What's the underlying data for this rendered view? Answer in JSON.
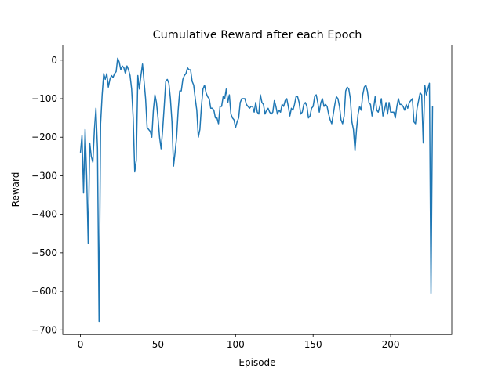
{
  "chart_data": {
    "type": "line",
    "title": "Cumulative Reward after each Epoch",
    "xlabel": "Episode",
    "ylabel": "Reward",
    "x": [
      0,
      1,
      2,
      3,
      4,
      5,
      6,
      7,
      8,
      9,
      10,
      11,
      12,
      13,
      14,
      15,
      16,
      17,
      18,
      19,
      20,
      21,
      22,
      23,
      24,
      25,
      26,
      27,
      28,
      29,
      30,
      31,
      32,
      33,
      34,
      35,
      36,
      37,
      38,
      39,
      40,
      41,
      42,
      43,
      44,
      45,
      46,
      47,
      48,
      49,
      50,
      51,
      52,
      53,
      54,
      55,
      56,
      57,
      58,
      59,
      60,
      61,
      62,
      63,
      64,
      65,
      66,
      67,
      68,
      69,
      70,
      71,
      72,
      73,
      74,
      75,
      76,
      77,
      78,
      79,
      80,
      81,
      82,
      83,
      84,
      85,
      86,
      87,
      88,
      89,
      90,
      91,
      92,
      93,
      94,
      95,
      96,
      97,
      98,
      99,
      100,
      101,
      102,
      103,
      104,
      105,
      106,
      107,
      108,
      109,
      110,
      111,
      112,
      113,
      114,
      115,
      116,
      117,
      118,
      119,
      120,
      121,
      122,
      123,
      124,
      125,
      126,
      127,
      128,
      129,
      130,
      131,
      132,
      133,
      134,
      135,
      136,
      137,
      138,
      139,
      140,
      141,
      142,
      143,
      144,
      145,
      146,
      147,
      148,
      149,
      150,
      151,
      152,
      153,
      154,
      155,
      156,
      157,
      158,
      159,
      160,
      161,
      162,
      163,
      164,
      165,
      166,
      167,
      168,
      169,
      170,
      171,
      172,
      173,
      174,
      175,
      176,
      177,
      178,
      179,
      180,
      181,
      182,
      183,
      184,
      185,
      186,
      187,
      188,
      189,
      190,
      191,
      192,
      193,
      194,
      195,
      196,
      197,
      198,
      199,
      200,
      201,
      202,
      203,
      204,
      205,
      206,
      207,
      208,
      209,
      210,
      211,
      212,
      213,
      214,
      215,
      216,
      217,
      218,
      219,
      220,
      221,
      222,
      223,
      224,
      225,
      226,
      227
    ],
    "values": [
      -240,
      -195,
      -345,
      -180,
      -300,
      -475,
      -215,
      -250,
      -265,
      -180,
      -125,
      -230,
      -678,
      -165,
      -90,
      -35,
      -50,
      -35,
      -70,
      -50,
      -40,
      -45,
      -35,
      -30,
      5,
      -5,
      -25,
      -15,
      -20,
      -35,
      -15,
      -25,
      -40,
      -75,
      -150,
      -290,
      -260,
      -40,
      -75,
      -40,
      -10,
      -55,
      -100,
      -175,
      -180,
      -185,
      -200,
      -130,
      -90,
      -110,
      -150,
      -200,
      -230,
      -180,
      -120,
      -55,
      -50,
      -60,
      -100,
      -160,
      -275,
      -240,
      -200,
      -130,
      -80,
      -80,
      -50,
      -40,
      -35,
      -20,
      -25,
      -25,
      -55,
      -65,
      -100,
      -130,
      -200,
      -180,
      -120,
      -75,
      -65,
      -85,
      -95,
      -100,
      -125,
      -125,
      -130,
      -150,
      -150,
      -165,
      -120,
      -120,
      -95,
      -100,
      -75,
      -110,
      -90,
      -140,
      -150,
      -155,
      -175,
      -160,
      -150,
      -110,
      -100,
      -100,
      -100,
      -115,
      -120,
      -125,
      -120,
      -120,
      -135,
      -110,
      -135,
      -140,
      -90,
      -110,
      -115,
      -140,
      -130,
      -125,
      -135,
      -140,
      -135,
      -105,
      -120,
      -140,
      -130,
      -135,
      -115,
      -120,
      -105,
      -100,
      -120,
      -145,
      -125,
      -130,
      -115,
      -95,
      -95,
      -110,
      -140,
      -135,
      -115,
      -110,
      -120,
      -150,
      -145,
      -125,
      -120,
      -95,
      -90,
      -110,
      -135,
      -110,
      -100,
      -120,
      -115,
      -120,
      -140,
      -155,
      -165,
      -140,
      -115,
      -95,
      -100,
      -120,
      -155,
      -165,
      -145,
      -80,
      -70,
      -75,
      -100,
      -160,
      -180,
      -235,
      -180,
      -140,
      -120,
      -130,
      -90,
      -70,
      -65,
      -80,
      -110,
      -115,
      -145,
      -125,
      -95,
      -130,
      -135,
      -120,
      -100,
      -145,
      -130,
      -110,
      -140,
      -110,
      -135,
      -135,
      -135,
      -150,
      -120,
      -100,
      -115,
      -115,
      -120,
      -130,
      -115,
      -125,
      -110,
      -105,
      -100,
      -160,
      -165,
      -125,
      -105,
      -85,
      -90,
      -215,
      -65,
      -90,
      -75,
      -60,
      -605,
      -120
    ],
    "color": "#1f77b4",
    "xlim": [
      -11.4,
      239.4
    ],
    "ylim": [
      -712,
      39
    ],
    "xticks": [
      0,
      50,
      100,
      150,
      200
    ],
    "yticks": [
      {
        "value": 0,
        "label": "0"
      },
      {
        "value": -100,
        "label": "−100"
      },
      {
        "value": -200,
        "label": "−200"
      },
      {
        "value": -300,
        "label": "−300"
      },
      {
        "value": -400,
        "label": "−400"
      },
      {
        "value": -500,
        "label": "−500"
      },
      {
        "value": -600,
        "label": "−600"
      },
      {
        "value": -700,
        "label": "−700"
      }
    ]
  }
}
